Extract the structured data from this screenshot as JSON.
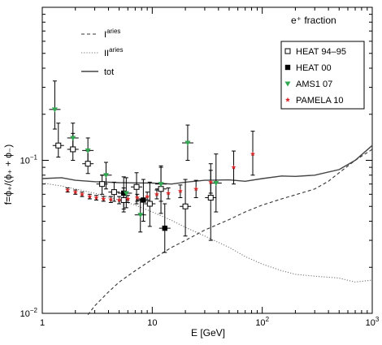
{
  "chart_data": {
    "type": "scatter",
    "title": "e⁺ fraction",
    "xlabel": "E [GeV]",
    "ylabel": "f=ϕ₊/(ϕ₊ + ϕ₋)",
    "xscale": "log",
    "yscale": "log",
    "xlim": [
      1,
      1000
    ],
    "ylim": [
      0.01,
      1.0
    ],
    "x_tick_labels": [
      {
        "value": 1,
        "base": "1",
        "exp": ""
      },
      {
        "value": 10,
        "base": "10",
        "exp": ""
      },
      {
        "value": 100,
        "base": "10",
        "exp": "2"
      },
      {
        "value": 1000,
        "base": "10",
        "exp": "3"
      }
    ],
    "y_tick_labels": [
      {
        "value": 0.01,
        "base": "10",
        "exp": "−2"
      },
      {
        "value": 0.1,
        "base": "10",
        "exp": "−1"
      }
    ],
    "lines": [
      {
        "name": "I",
        "name_sup": "aries",
        "style": "dashed",
        "color": "#333333",
        "points": [
          [
            2.6,
            0.0098
          ],
          [
            3,
            0.0112
          ],
          [
            4,
            0.0138
          ],
          [
            5,
            0.016
          ],
          [
            7,
            0.019
          ],
          [
            10,
            0.0225
          ],
          [
            15,
            0.027
          ],
          [
            20,
            0.03
          ],
          [
            30,
            0.035
          ],
          [
            50,
            0.041
          ],
          [
            70,
            0.046
          ],
          [
            100,
            0.051
          ],
          [
            150,
            0.056
          ],
          [
            200,
            0.0595
          ],
          [
            300,
            0.065
          ],
          [
            400,
            0.073
          ],
          [
            500,
            0.083
          ],
          [
            700,
            0.1
          ],
          [
            1000,
            0.118
          ]
        ]
      },
      {
        "name": "II",
        "name_sup": "aries",
        "style": "dotted",
        "color": "#777777",
        "points": [
          [
            1,
            0.071
          ],
          [
            1.5,
            0.068
          ],
          [
            2,
            0.065
          ],
          [
            3,
            0.061
          ],
          [
            5,
            0.055
          ],
          [
            7,
            0.051
          ],
          [
            10,
            0.046
          ],
          [
            15,
            0.0405
          ],
          [
            20,
            0.0365
          ],
          [
            30,
            0.032
          ],
          [
            50,
            0.027
          ],
          [
            70,
            0.0235
          ],
          [
            100,
            0.021
          ],
          [
            150,
            0.019
          ],
          [
            200,
            0.018
          ],
          [
            300,
            0.0175
          ],
          [
            500,
            0.017
          ],
          [
            700,
            0.016
          ],
          [
            1000,
            0.0165
          ]
        ]
      },
      {
        "name": "tot",
        "name_sup": "",
        "style": "solid",
        "color": "#444444",
        "points": [
          [
            1,
            0.076
          ],
          [
            1.5,
            0.077
          ],
          [
            2,
            0.074
          ],
          [
            3,
            0.0725
          ],
          [
            5,
            0.0715
          ],
          [
            7,
            0.0712
          ],
          [
            10,
            0.071
          ],
          [
            15,
            0.07
          ],
          [
            20,
            0.072
          ],
          [
            30,
            0.074
          ],
          [
            50,
            0.0745
          ],
          [
            70,
            0.073
          ],
          [
            100,
            0.076
          ],
          [
            150,
            0.079
          ],
          [
            200,
            0.0785
          ],
          [
            300,
            0.08
          ],
          [
            500,
            0.087
          ],
          [
            700,
            0.1
          ],
          [
            1000,
            0.125
          ]
        ]
      }
    ],
    "series": [
      {
        "name": "HEAT 94–95",
        "marker": "open-square",
        "color": "#000000",
        "points": [
          {
            "x": 1.4,
            "y": 0.125,
            "ylo": 0.105,
            "yhi": 0.175
          },
          {
            "x": 1.9,
            "y": 0.118,
            "ylo": 0.1,
            "yhi": 0.15
          },
          {
            "x": 2.6,
            "y": 0.095,
            "ylo": 0.082,
            "yhi": 0.115
          },
          {
            "x": 3.5,
            "y": 0.07,
            "ylo": 0.06,
            "yhi": 0.08
          },
          {
            "x": 4.5,
            "y": 0.062,
            "ylo": 0.054,
            "yhi": 0.072
          },
          {
            "x": 5.5,
            "y": 0.055,
            "ylo": 0.046,
            "yhi": 0.066
          },
          {
            "x": 7.2,
            "y": 0.067,
            "ylo": 0.052,
            "yhi": 0.083
          },
          {
            "x": 9.5,
            "y": 0.052,
            "ylo": 0.037,
            "yhi": 0.072
          },
          {
            "x": 12,
            "y": 0.065,
            "ylo": 0.045,
            "yhi": 0.09
          },
          {
            "x": 20,
            "y": 0.05,
            "ylo": 0.032,
            "yhi": 0.075
          },
          {
            "x": 34,
            "y": 0.057,
            "ylo": 0.03,
            "yhi": 0.095
          }
        ]
      },
      {
        "name": "HEAT 00",
        "marker": "filled-square",
        "color": "#000000",
        "points": [
          {
            "x": 5.5,
            "y": 0.061,
            "ylo": 0.048,
            "yhi": 0.078
          },
          {
            "x": 8.3,
            "y": 0.055,
            "ylo": 0.04,
            "yhi": 0.075
          },
          {
            "x": 13,
            "y": 0.036,
            "ylo": 0.025,
            "yhi": 0.052
          }
        ]
      },
      {
        "name": "AMS1 07",
        "marker": "triangle-down",
        "color": "#2fa84f",
        "points": [
          {
            "x": 1.3,
            "y": 0.215,
            "ylo": 0.16,
            "yhi": 0.33
          },
          {
            "x": 1.9,
            "y": 0.14,
            "ylo": 0.115,
            "yhi": 0.175
          },
          {
            "x": 2.6,
            "y": 0.116,
            "ylo": 0.098,
            "yhi": 0.14
          },
          {
            "x": 3.8,
            "y": 0.08,
            "ylo": 0.065,
            "yhi": 0.097
          },
          {
            "x": 5.8,
            "y": 0.061,
            "ylo": 0.049,
            "yhi": 0.077
          },
          {
            "x": 7.8,
            "y": 0.044,
            "ylo": 0.034,
            "yhi": 0.056
          },
          {
            "x": 12,
            "y": 0.07,
            "ylo": 0.054,
            "yhi": 0.092
          },
          {
            "x": 21,
            "y": 0.13,
            "ylo": 0.1,
            "yhi": 0.17
          },
          {
            "x": 38,
            "y": 0.071,
            "ylo": 0.046,
            "yhi": 0.11
          }
        ]
      },
      {
        "name": "PAMELA 10",
        "marker": "star",
        "color": "#d62728",
        "points": [
          {
            "x": 1.7,
            "y": 0.064,
            "ylo": 0.062,
            "yhi": 0.066
          },
          {
            "x": 2.0,
            "y": 0.062,
            "ylo": 0.06,
            "yhi": 0.064
          },
          {
            "x": 2.3,
            "y": 0.06,
            "ylo": 0.058,
            "yhi": 0.062
          },
          {
            "x": 2.7,
            "y": 0.058,
            "ylo": 0.056,
            "yhi": 0.06
          },
          {
            "x": 3.1,
            "y": 0.057,
            "ylo": 0.055,
            "yhi": 0.059
          },
          {
            "x": 3.6,
            "y": 0.056,
            "ylo": 0.054,
            "yhi": 0.058
          },
          {
            "x": 4.2,
            "y": 0.0555,
            "ylo": 0.053,
            "yhi": 0.058
          },
          {
            "x": 5.0,
            "y": 0.055,
            "ylo": 0.052,
            "yhi": 0.058
          },
          {
            "x": 6.0,
            "y": 0.056,
            "ylo": 0.053,
            "yhi": 0.059
          },
          {
            "x": 7.3,
            "y": 0.057,
            "ylo": 0.054,
            "yhi": 0.06
          },
          {
            "x": 9.0,
            "y": 0.058,
            "ylo": 0.055,
            "yhi": 0.062
          },
          {
            "x": 11,
            "y": 0.06,
            "ylo": 0.056,
            "yhi": 0.064
          },
          {
            "x": 14,
            "y": 0.061,
            "ylo": 0.056,
            "yhi": 0.066
          },
          {
            "x": 18,
            "y": 0.063,
            "ylo": 0.057,
            "yhi": 0.069
          },
          {
            "x": 25,
            "y": 0.065,
            "ylo": 0.057,
            "yhi": 0.074
          },
          {
            "x": 34,
            "y": 0.072,
            "ylo": 0.061,
            "yhi": 0.086
          },
          {
            "x": 55,
            "y": 0.09,
            "ylo": 0.07,
            "yhi": 0.115
          },
          {
            "x": 82,
            "y": 0.11,
            "ylo": 0.08,
            "yhi": 0.155
          }
        ]
      }
    ],
    "legend_lines_position": "top-left",
    "legend_data_position": "top-right",
    "grid": false
  }
}
